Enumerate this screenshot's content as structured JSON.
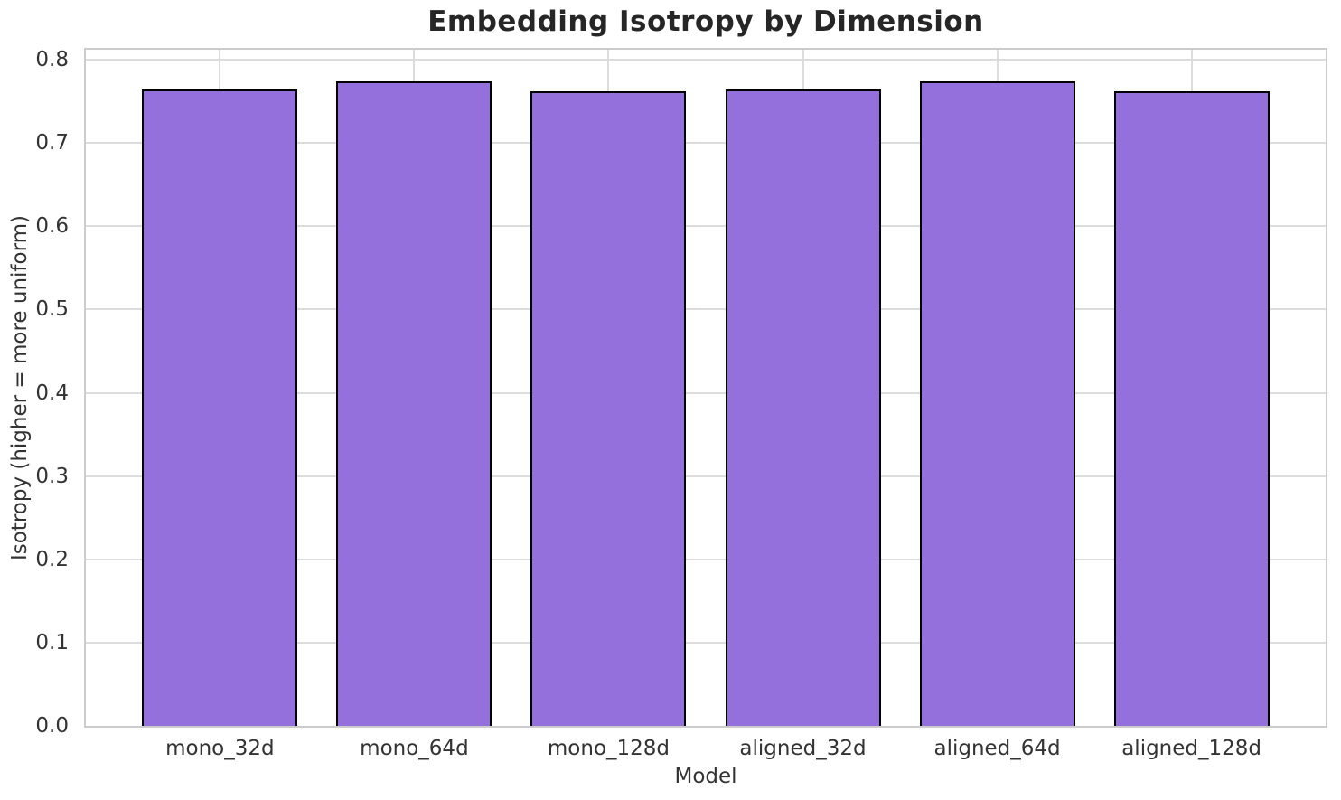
{
  "chart_data": {
    "type": "bar",
    "title": "Embedding Isotropy by Dimension",
    "xlabel": "Model",
    "ylabel": "Isotropy (higher = more uniform)",
    "categories": [
      "mono_32d",
      "mono_64d",
      "mono_128d",
      "aligned_32d",
      "aligned_64d",
      "aligned_128d"
    ],
    "values": [
      0.764,
      0.774,
      0.762,
      0.764,
      0.774,
      0.762
    ],
    "yticks": [
      0.0,
      0.1,
      0.2,
      0.3,
      0.4,
      0.5,
      0.6,
      0.7,
      0.8
    ],
    "ytick_labels": [
      "0.0",
      "0.1",
      "0.2",
      "0.3",
      "0.4",
      "0.5",
      "0.6",
      "0.7",
      "0.8"
    ],
    "ylim": [
      0,
      0.812
    ],
    "bar_width_fraction": 0.8,
    "grid": true,
    "legend_position": "none",
    "colors": {
      "bar_fill": "#9370db",
      "bar_edge": "#000000",
      "grid": "#dcdcdc",
      "spine": "#cccccc",
      "tick_text": "#333333",
      "title_text": "#262626",
      "background": "#ffffff"
    }
  }
}
